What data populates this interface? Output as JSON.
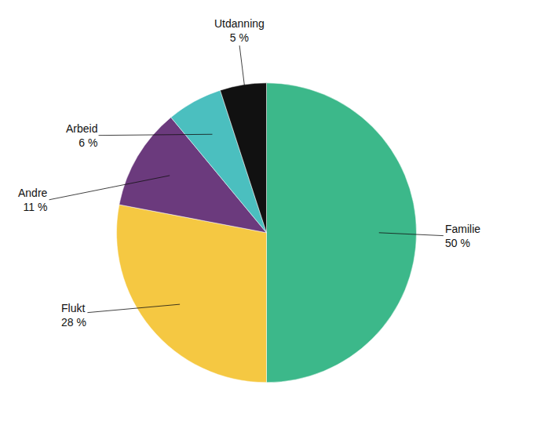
{
  "chart_data": {
    "type": "pie",
    "categories": [
      "Familie",
      "Flukt",
      "Andre",
      "Arbeid",
      "Utdanning"
    ],
    "values": [
      50,
      28,
      11,
      6,
      5
    ],
    "value_labels": [
      "50 %",
      "28 %",
      "11 %",
      "6 %",
      "5 %"
    ],
    "colors": [
      "#3cb88a",
      "#f5c842",
      "#6b3a7d",
      "#4bbfbf",
      "#111111"
    ],
    "data_labels": true
  }
}
